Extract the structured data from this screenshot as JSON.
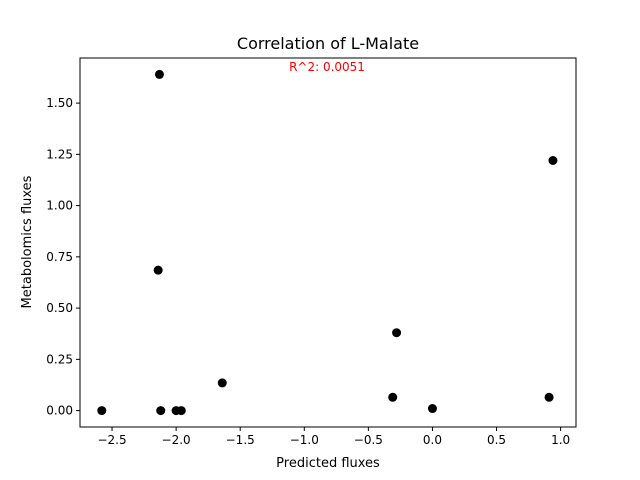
{
  "chart_data": {
    "type": "scatter",
    "title": "Correlation of L-Malate",
    "xlabel": "Predicted fluxes",
    "ylabel": "Metabolomics fluxes",
    "annotation": "R^2: 0.0051",
    "annotation_color": "#ff0000",
    "point_color": "#000000",
    "xlim": [
      -2.75,
      1.12
    ],
    "ylim": [
      -0.08,
      1.72
    ],
    "xticks": [
      -2.5,
      -2.0,
      -1.5,
      -1.0,
      -0.5,
      0.0,
      0.5,
      1.0
    ],
    "xtick_labels": [
      "−2.5",
      "−2.0",
      "−1.5",
      "−1.0",
      "−0.5",
      "0.0",
      "0.5",
      "1.0"
    ],
    "yticks": [
      0.0,
      0.25,
      0.5,
      0.75,
      1.0,
      1.25,
      1.5
    ],
    "ytick_labels": [
      "0.00",
      "0.25",
      "0.50",
      "0.75",
      "1.00",
      "1.25",
      "1.50"
    ],
    "grid": false,
    "points": [
      {
        "x": -2.58,
        "y": 0.0
      },
      {
        "x": -2.13,
        "y": 1.64
      },
      {
        "x": -2.14,
        "y": 0.685
      },
      {
        "x": -2.12,
        "y": 0.0
      },
      {
        "x": -2.0,
        "y": 0.0
      },
      {
        "x": -1.96,
        "y": 0.0
      },
      {
        "x": -1.64,
        "y": 0.135
      },
      {
        "x": -0.31,
        "y": 0.065
      },
      {
        "x": -0.28,
        "y": 0.38
      },
      {
        "x": 0.0,
        "y": 0.01
      },
      {
        "x": 0.91,
        "y": 0.065
      },
      {
        "x": 0.94,
        "y": 1.22
      }
    ]
  }
}
